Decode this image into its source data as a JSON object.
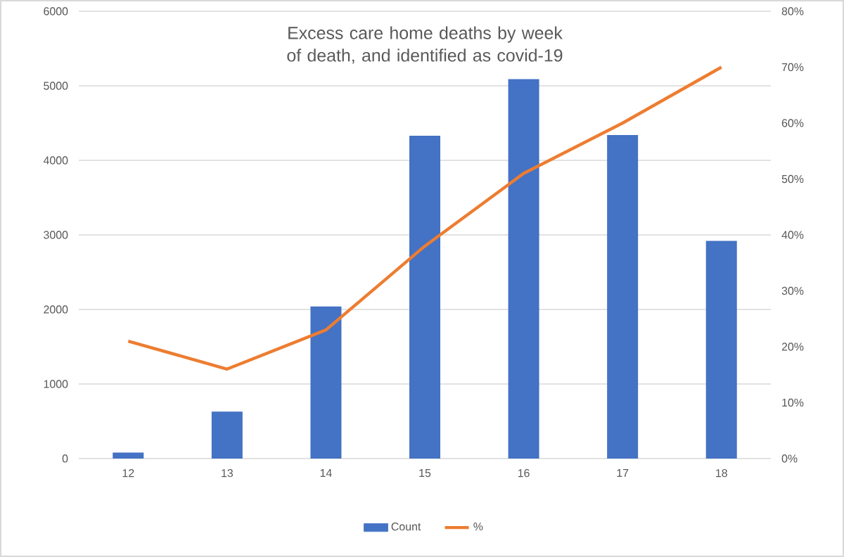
{
  "chart_data": {
    "type": "bar",
    "title": "Excess care home deaths by week of death, and identified as covid-19",
    "categories": [
      "12",
      "13",
      "14",
      "15",
      "16",
      "17",
      "18"
    ],
    "series": [
      {
        "name": "Count",
        "color": "#4472c4",
        "values": [
          80,
          630,
          2040,
          4330,
          5090,
          4340,
          2920
        ]
      },
      {
        "name": "%",
        "type": "line",
        "axis": "y2",
        "color": "#ed7d31",
        "marker": "none",
        "values": [
          21,
          16,
          23,
          38,
          51,
          60,
          70
        ]
      }
    ],
    "ylim": [
      0,
      6000
    ],
    "yticks": [
      0,
      1000,
      2000,
      3000,
      4000,
      5000,
      6000
    ],
    "y2lim": [
      0,
      80
    ],
    "y2ticks": [
      {
        "value": 0,
        "label": "0%"
      },
      {
        "value": 10,
        "label": "10%"
      },
      {
        "value": 20,
        "label": "20%"
      },
      {
        "value": 30,
        "label": "30%"
      },
      {
        "value": 40,
        "label": "40%"
      },
      {
        "value": 50,
        "label": "50%"
      },
      {
        "value": 60,
        "label": "60%"
      },
      {
        "value": 70,
        "label": "70%"
      },
      {
        "value": 80,
        "label": "80%"
      }
    ],
    "grid": "y",
    "legend": "bottom"
  }
}
